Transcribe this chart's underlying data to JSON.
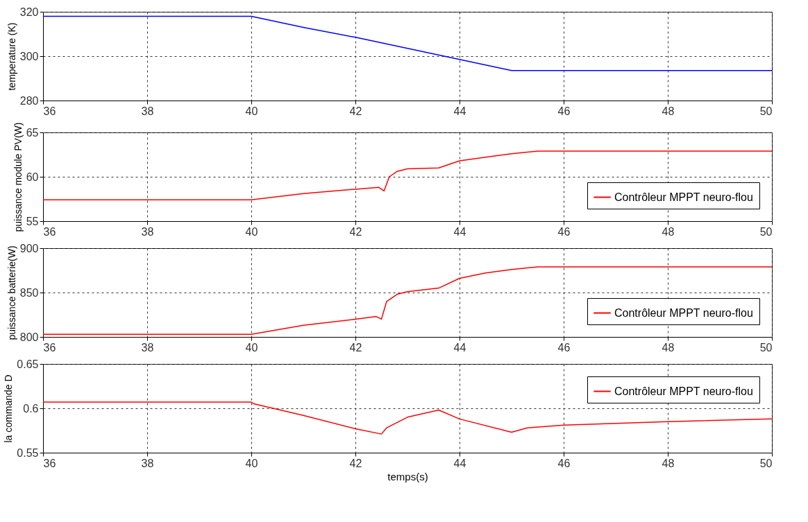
{
  "chart_data": [
    {
      "type": "line",
      "ylabel": "temperature (K)",
      "xlim": [
        36,
        50
      ],
      "xticks": [
        36,
        38,
        40,
        42,
        44,
        46,
        48,
        50
      ],
      "ylim": [
        280,
        320
      ],
      "yticks": [
        280,
        300,
        320
      ],
      "grid": true,
      "legend": false,
      "series": [
        {
          "color": "#0000ff",
          "x": [
            36,
            40,
            41,
            42,
            43,
            44,
            45,
            46,
            48,
            50
          ],
          "values": [
            318,
            318,
            313,
            308.5,
            303.5,
            298.5,
            293.5,
            293.5,
            293.5,
            293.5
          ]
        }
      ]
    },
    {
      "type": "line",
      "ylabel": "puissance module PV(W)",
      "xlim": [
        36,
        50
      ],
      "xticks": [
        36,
        38,
        40,
        42,
        44,
        46,
        48,
        50
      ],
      "ylim": [
        55,
        65
      ],
      "yticks": [
        55,
        60,
        65
      ],
      "grid": true,
      "legend": "bottom right",
      "series": [
        {
          "name": "Contrôleur MPPT neuro-flou",
          "color": "#ff0000",
          "x": [
            36,
            40,
            41,
            42,
            42.45,
            42.55,
            42.65,
            42.8,
            43,
            43.6,
            44,
            44.5,
            45,
            45.5,
            48,
            50
          ],
          "values": [
            57.4,
            57.4,
            58.1,
            58.6,
            58.8,
            58.4,
            60.0,
            60.6,
            60.9,
            61.0,
            61.8,
            62.2,
            62.6,
            62.9,
            62.9,
            62.9
          ]
        }
      ]
    },
    {
      "type": "line",
      "ylabel": "puissance batterie(W)",
      "xlim": [
        36,
        50
      ],
      "xticks": [
        36,
        38,
        40,
        42,
        44,
        46,
        48,
        50
      ],
      "ylim": [
        800,
        900
      ],
      "yticks": [
        800,
        850,
        900
      ],
      "grid": true,
      "legend": "bottom right",
      "series": [
        {
          "name": "Contrôleur MPPT neuro-flou",
          "color": "#ff0000",
          "x": [
            36,
            40,
            41,
            42,
            42.4,
            42.5,
            42.6,
            42.8,
            43,
            43.6,
            44,
            44.5,
            45,
            45.5,
            48,
            50
          ],
          "values": [
            803,
            803,
            813,
            820,
            823,
            820,
            840,
            848,
            851,
            855,
            866,
            872,
            876,
            879,
            879,
            879
          ]
        }
      ]
    },
    {
      "type": "line",
      "ylabel": "la commande D",
      "xlabel": "temps(s)",
      "xlim": [
        36,
        50
      ],
      "xticks": [
        36,
        38,
        40,
        42,
        44,
        46,
        48,
        50
      ],
      "ylim": [
        0.55,
        0.65
      ],
      "yticks": [
        0.55,
        0.6,
        0.65
      ],
      "grid": true,
      "legend": "top right",
      "series": [
        {
          "name": "Contrôleur MPPT neuro-flou",
          "color": "#ff0000",
          "x": [
            36,
            40,
            40.05,
            41,
            42,
            42.5,
            42.6,
            43,
            43.6,
            44,
            45,
            45.3,
            46,
            48,
            50
          ],
          "values": [
            0.607,
            0.607,
            0.605,
            0.592,
            0.577,
            0.571,
            0.578,
            0.59,
            0.598,
            0.588,
            0.573,
            0.578,
            0.581,
            0.585,
            0.588
          ]
        }
      ]
    }
  ]
}
